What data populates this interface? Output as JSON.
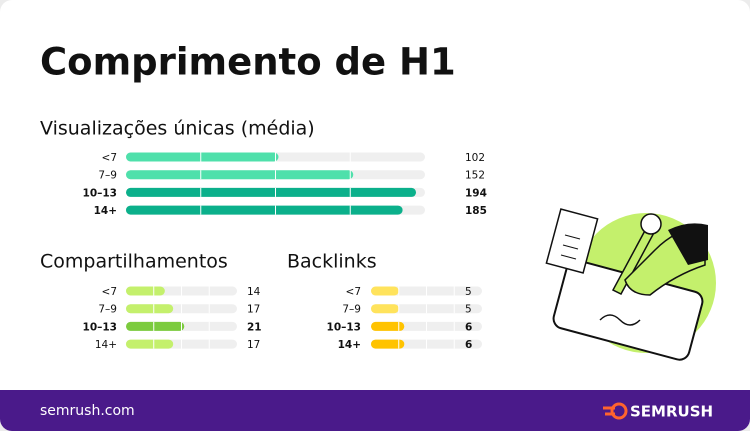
{
  "title": "Comprimento de H1",
  "footer": {
    "url": "semrush.com",
    "logo": "SEMRUSH"
  },
  "chart_data": [
    {
      "type": "bar",
      "orientation": "horizontal",
      "title": "Visualizações únicas (média)",
      "categories": [
        "<7",
        "7–9",
        "10–13",
        "14+"
      ],
      "values": [
        102,
        152,
        194,
        185
      ],
      "colors": [
        "#4fe0ab",
        "#4fe0ab",
        "#0bb08b",
        "#0bb08b"
      ],
      "bold": [
        false,
        false,
        true,
        true
      ],
      "xlim": [
        0,
        200
      ],
      "xticks": [
        50,
        100,
        150
      ],
      "grid": true
    },
    {
      "type": "bar",
      "orientation": "horizontal",
      "title": "Compartilhamentos",
      "categories": [
        "<7",
        "7–9",
        "10–13",
        "14+"
      ],
      "values": [
        14,
        17,
        21,
        17
      ],
      "colors": [
        "#c4f06c",
        "#c4f06c",
        "#7ccb3e",
        "#c4f06c"
      ],
      "bold": [
        false,
        false,
        true,
        false
      ],
      "xlim": [
        0,
        40
      ],
      "xticks": [
        10,
        20,
        30
      ],
      "grid": true
    },
    {
      "type": "bar",
      "orientation": "horizontal",
      "title": "Backlinks",
      "categories": [
        "<7",
        "7–9",
        "10–13",
        "14+"
      ],
      "values": [
        5,
        5,
        6,
        6
      ],
      "colors": [
        "#ffe35c",
        "#ffe35c",
        "#ffc300",
        "#ffc300"
      ],
      "bold": [
        false,
        false,
        true,
        true
      ],
      "xlim": [
        0,
        20
      ],
      "xticks": [
        5,
        10,
        15
      ],
      "grid": true
    }
  ]
}
